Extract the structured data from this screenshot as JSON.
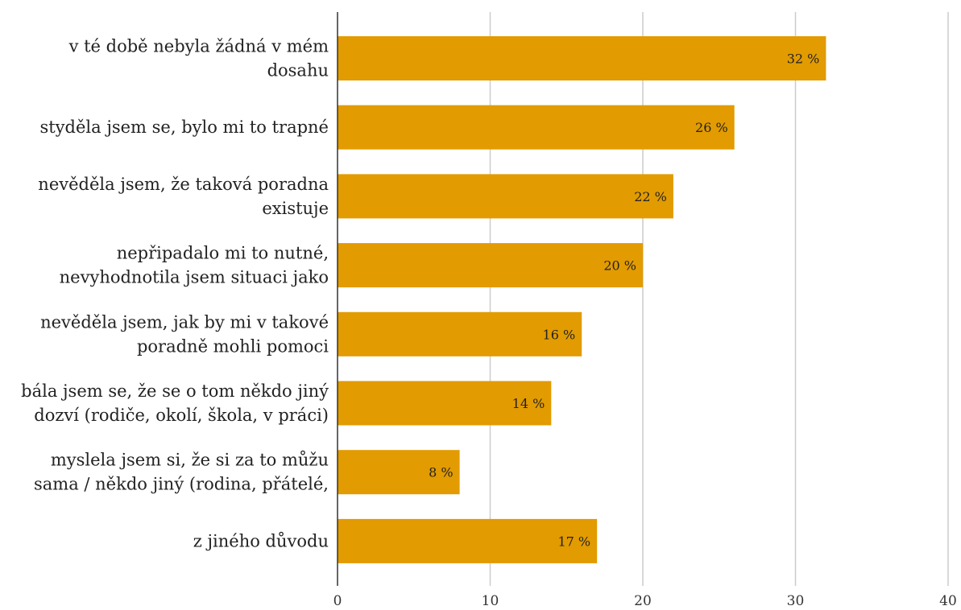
{
  "chart_data": {
    "type": "bar",
    "orientation": "horizontal",
    "categories": [
      [
        "v té době nebyla žádná v mém",
        "dosahu"
      ],
      [
        "styděla jsem se, bylo mi to trapné"
      ],
      [
        "nevěděla jsem, že taková poradna",
        "existuje"
      ],
      [
        "nepřipadalo mi to nutné,",
        "nevyhodnotila jsem situaci jako"
      ],
      [
        "nevěděla jsem, jak by mi v takové",
        "poradně mohli pomoci"
      ],
      [
        "bála jsem se, že se o tom někdo jiný",
        "dozví (rodiče, okolí, škola, v práci)"
      ],
      [
        "myslela jsem si, že si za to můžu",
        "sama / někdo jiný (rodina, přátelé,"
      ],
      [
        "z jiného důvodu"
      ]
    ],
    "values": [
      32,
      26,
      22,
      20,
      16,
      14,
      8,
      17
    ],
    "data_labels": [
      "32 %",
      "26 %",
      "22 %",
      "20 %",
      "16 %",
      "14 %",
      "8 %",
      "17 %"
    ],
    "xlim": [
      0,
      40
    ],
    "xticks": [
      0,
      10,
      20,
      30,
      40
    ],
    "xtick_labels": [
      "0",
      "10",
      "20",
      "30",
      "40"
    ],
    "title": "",
    "xlabel": "",
    "ylabel": "",
    "grid": "vertical",
    "colors": {
      "bar": "#E29B00",
      "grid": "#CCCCCC",
      "axis": "#333333"
    }
  }
}
